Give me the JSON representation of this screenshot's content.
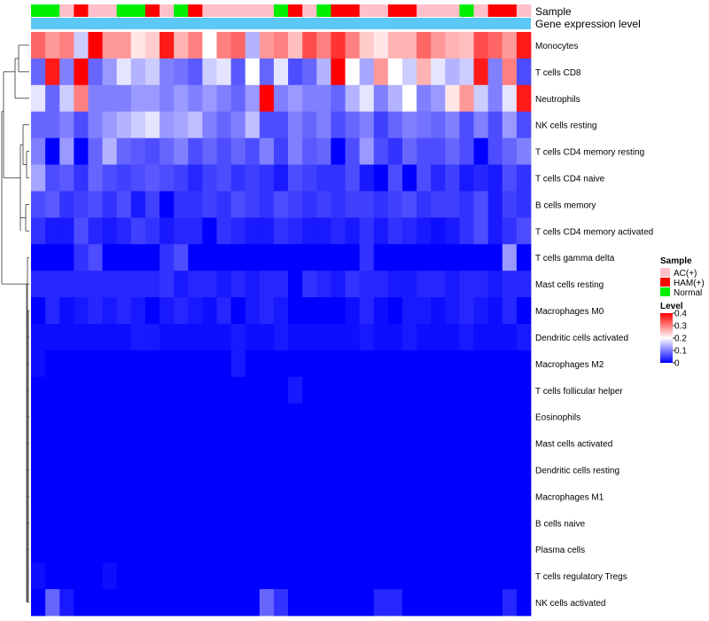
{
  "chart_data": {
    "type": "heatmap",
    "annotation_rows": [
      "Sample",
      "Gene expression level"
    ],
    "rows": [
      "Monocytes",
      "T cells CD8",
      "Neutrophils",
      "NK cells resting",
      "T cells CD4 memory resting",
      "T cells CD4 naive",
      "B cells memory",
      "T cells CD4 memory activated",
      "T cells gamma delta",
      "Mast cells resting",
      "Macrophages M0",
      "Dendritic cells activated",
      "Macrophages M2",
      "T cells follicular helper",
      "Eosinophils",
      "Mast cells activated",
      "Dendritic cells resting",
      "Macrophages M1",
      "B cells naive",
      "Plasma cells",
      "T cells regulatory  Tregs",
      "NK cells activated"
    ],
    "sample_groups": [
      "Normal",
      "Normal",
      "AC(+)",
      "HAM(+)",
      "AC(+)",
      "AC(+)",
      "Normal",
      "Normal",
      "HAM(+)",
      "AC(+)",
      "Normal",
      "HAM(+)",
      "AC(+)",
      "AC(+)",
      "AC(+)",
      "AC(+)",
      "AC(+)",
      "Normal",
      "HAM(+)",
      "AC(+)",
      "Normal",
      "HAM(+)",
      "HAM(+)",
      "AC(+)",
      "AC(+)",
      "HAM(+)",
      "HAM(+)",
      "AC(+)",
      "AC(+)",
      "AC(+)",
      "Normal",
      "AC(+)",
      "HAM(+)",
      "HAM(+)",
      "AC(+)"
    ],
    "values": [
      [
        0.32,
        0.28,
        0.3,
        0.16,
        0.4,
        0.28,
        0.28,
        0.22,
        0.24,
        0.38,
        0.26,
        0.3,
        0.2,
        0.3,
        0.32,
        0.14,
        0.28,
        0.3,
        0.25,
        0.34,
        0.3,
        0.36,
        0.3,
        0.24,
        0.22,
        0.26,
        0.26,
        0.32,
        0.28,
        0.26,
        0.25,
        0.34,
        0.32,
        0.28,
        0.38
      ],
      [
        0.08,
        0.38,
        0.1,
        0.4,
        0.08,
        0.12,
        0.18,
        0.14,
        0.16,
        0.1,
        0.09,
        0.07,
        0.16,
        0.18,
        0.07,
        0.2,
        0.08,
        0.18,
        0.06,
        0.08,
        0.14,
        0.4,
        0.2,
        0.13,
        0.28,
        0.2,
        0.16,
        0.26,
        0.18,
        0.14,
        0.16,
        0.38,
        0.1,
        0.3,
        0.06
      ],
      [
        0.18,
        0.08,
        0.16,
        0.3,
        0.1,
        0.1,
        0.1,
        0.12,
        0.12,
        0.1,
        0.12,
        0.1,
        0.12,
        0.1,
        0.08,
        0.12,
        0.4,
        0.1,
        0.12,
        0.1,
        0.1,
        0.08,
        0.14,
        0.18,
        0.1,
        0.14,
        0.2,
        0.1,
        0.12,
        0.22,
        0.28,
        0.16,
        0.1,
        0.18,
        0.38
      ],
      [
        0.08,
        0.08,
        0.1,
        0.06,
        0.1,
        0.12,
        0.14,
        0.16,
        0.18,
        0.12,
        0.13,
        0.15,
        0.1,
        0.08,
        0.1,
        0.15,
        0.06,
        0.06,
        0.1,
        0.08,
        0.1,
        0.06,
        0.08,
        0.1,
        0.05,
        0.08,
        0.1,
        0.09,
        0.08,
        0.1,
        0.06,
        0.1,
        0.06,
        0.12,
        0.06
      ],
      [
        0.1,
        0.0,
        0.12,
        0.0,
        0.08,
        0.14,
        0.08,
        0.07,
        0.06,
        0.08,
        0.1,
        0.06,
        0.08,
        0.06,
        0.08,
        0.06,
        0.1,
        0.05,
        0.1,
        0.07,
        0.08,
        0.0,
        0.06,
        0.12,
        0.06,
        0.04,
        0.08,
        0.06,
        0.06,
        0.08,
        0.06,
        0.0,
        0.06,
        0.08,
        0.1
      ],
      [
        0.13,
        0.06,
        0.07,
        0.04,
        0.08,
        0.06,
        0.05,
        0.06,
        0.07,
        0.06,
        0.05,
        0.03,
        0.05,
        0.06,
        0.04,
        0.05,
        0.04,
        0.02,
        0.06,
        0.05,
        0.04,
        0.04,
        0.06,
        0.02,
        0.0,
        0.06,
        0.0,
        0.06,
        0.03,
        0.05,
        0.02,
        0.03,
        0.02,
        0.06,
        0.04
      ],
      [
        0.06,
        0.07,
        0.04,
        0.05,
        0.06,
        0.04,
        0.06,
        0.02,
        0.05,
        0.0,
        0.04,
        0.04,
        0.05,
        0.04,
        0.06,
        0.05,
        0.04,
        0.06,
        0.05,
        0.04,
        0.05,
        0.04,
        0.05,
        0.05,
        0.04,
        0.05,
        0.06,
        0.04,
        0.05,
        0.05,
        0.04,
        0.06,
        0.02,
        0.05,
        0.04
      ],
      [
        0.04,
        0.02,
        0.02,
        0.06,
        0.03,
        0.02,
        0.03,
        0.05,
        0.04,
        0.02,
        0.03,
        0.03,
        0.0,
        0.04,
        0.03,
        0.02,
        0.02,
        0.04,
        0.03,
        0.02,
        0.02,
        0.03,
        0.02,
        0.04,
        0.02,
        0.04,
        0.03,
        0.02,
        0.01,
        0.02,
        0.04,
        0.06,
        0.02,
        0.04,
        0.06
      ],
      [
        0.0,
        0.0,
        0.0,
        0.04,
        0.06,
        0.0,
        0.0,
        0.0,
        0.0,
        0.04,
        0.06,
        0.0,
        0.0,
        0.0,
        0.0,
        0.0,
        0.0,
        0.0,
        0.0,
        0.0,
        0.0,
        0.0,
        0.0,
        0.04,
        0.0,
        0.0,
        0.0,
        0.0,
        0.0,
        0.0,
        0.0,
        0.0,
        0.0,
        0.12,
        0.0
      ],
      [
        0.03,
        0.03,
        0.03,
        0.03,
        0.03,
        0.03,
        0.03,
        0.03,
        0.03,
        0.04,
        0.02,
        0.03,
        0.03,
        0.02,
        0.03,
        0.02,
        0.03,
        0.03,
        0.0,
        0.04,
        0.03,
        0.02,
        0.04,
        0.03,
        0.03,
        0.02,
        0.02,
        0.03,
        0.03,
        0.02,
        0.03,
        0.03,
        0.02,
        0.03,
        0.03
      ],
      [
        0.0,
        0.03,
        0.01,
        0.02,
        0.03,
        0.02,
        0.03,
        0.02,
        0.0,
        0.02,
        0.03,
        0.02,
        0.01,
        0.03,
        0.0,
        0.02,
        0.03,
        0.02,
        0.0,
        0.0,
        0.0,
        0.0,
        0.01,
        0.03,
        0.01,
        0.0,
        0.02,
        0.02,
        0.01,
        0.02,
        0.03,
        0.02,
        0.01,
        0.03,
        0.0
      ],
      [
        0.01,
        0.01,
        0.01,
        0.01,
        0.01,
        0.01,
        0.01,
        0.02,
        0.02,
        0.01,
        0.01,
        0.01,
        0.01,
        0.01,
        0.02,
        0.01,
        0.01,
        0.02,
        0.01,
        0.01,
        0.01,
        0.01,
        0.01,
        0.02,
        0.01,
        0.01,
        0.02,
        0.01,
        0.01,
        0.01,
        0.02,
        0.01,
        0.01,
        0.01,
        0.02
      ],
      [
        0.01,
        0.0,
        0.0,
        0.0,
        0.0,
        0.0,
        0.0,
        0.0,
        0.0,
        0.0,
        0.0,
        0.0,
        0.0,
        0.0,
        0.02,
        0.0,
        0.0,
        0.0,
        0.0,
        0.0,
        0.0,
        0.0,
        0.0,
        0.0,
        0.0,
        0.0,
        0.0,
        0.0,
        0.0,
        0.0,
        0.0,
        0.0,
        0.0,
        0.0,
        0.0
      ],
      [
        0.0,
        0.0,
        0.0,
        0.0,
        0.0,
        0.0,
        0.0,
        0.0,
        0.0,
        0.0,
        0.0,
        0.0,
        0.0,
        0.0,
        0.0,
        0.0,
        0.0,
        0.0,
        0.02,
        0.0,
        0.0,
        0.0,
        0.0,
        0.0,
        0.0,
        0.0,
        0.0,
        0.0,
        0.0,
        0.0,
        0.0,
        0.0,
        0.0,
        0.0,
        0.0
      ],
      [
        0.0,
        0.0,
        0.0,
        0.0,
        0.0,
        0.0,
        0.0,
        0.0,
        0.0,
        0.0,
        0.0,
        0.0,
        0.0,
        0.0,
        0.0,
        0.0,
        0.0,
        0.0,
        0.0,
        0.0,
        0.0,
        0.0,
        0.0,
        0.0,
        0.0,
        0.0,
        0.0,
        0.0,
        0.0,
        0.0,
        0.0,
        0.0,
        0.0,
        0.0,
        0.0
      ],
      [
        0.0,
        0.0,
        0.0,
        0.0,
        0.0,
        0.0,
        0.0,
        0.0,
        0.0,
        0.0,
        0.0,
        0.0,
        0.0,
        0.0,
        0.0,
        0.0,
        0.0,
        0.0,
        0.0,
        0.0,
        0.0,
        0.0,
        0.0,
        0.0,
        0.0,
        0.0,
        0.0,
        0.0,
        0.0,
        0.0,
        0.0,
        0.0,
        0.0,
        0.0,
        0.0
      ],
      [
        0.0,
        0.0,
        0.0,
        0.0,
        0.0,
        0.0,
        0.0,
        0.0,
        0.0,
        0.0,
        0.0,
        0.0,
        0.0,
        0.0,
        0.0,
        0.0,
        0.0,
        0.0,
        0.0,
        0.0,
        0.0,
        0.0,
        0.0,
        0.0,
        0.0,
        0.0,
        0.0,
        0.0,
        0.0,
        0.0,
        0.0,
        0.0,
        0.0,
        0.0,
        0.0
      ],
      [
        0.0,
        0.0,
        0.0,
        0.0,
        0.0,
        0.0,
        0.0,
        0.0,
        0.0,
        0.0,
        0.0,
        0.0,
        0.0,
        0.0,
        0.0,
        0.0,
        0.0,
        0.0,
        0.0,
        0.0,
        0.0,
        0.0,
        0.0,
        0.0,
        0.0,
        0.0,
        0.0,
        0.0,
        0.0,
        0.0,
        0.0,
        0.0,
        0.0,
        0.0,
        0.0
      ],
      [
        0.0,
        0.0,
        0.0,
        0.0,
        0.0,
        0.0,
        0.0,
        0.0,
        0.0,
        0.0,
        0.0,
        0.0,
        0.0,
        0.0,
        0.0,
        0.0,
        0.0,
        0.0,
        0.0,
        0.0,
        0.0,
        0.0,
        0.0,
        0.0,
        0.0,
        0.0,
        0.0,
        0.0,
        0.0,
        0.0,
        0.0,
        0.0,
        0.0,
        0.0,
        0.0
      ],
      [
        0.0,
        0.0,
        0.0,
        0.0,
        0.0,
        0.0,
        0.0,
        0.0,
        0.0,
        0.0,
        0.0,
        0.0,
        0.0,
        0.0,
        0.0,
        0.0,
        0.0,
        0.0,
        0.0,
        0.0,
        0.0,
        0.0,
        0.0,
        0.0,
        0.0,
        0.0,
        0.0,
        0.0,
        0.0,
        0.0,
        0.0,
        0.0,
        0.0,
        0.0,
        0.0
      ],
      [
        0.01,
        0.0,
        0.0,
        0.0,
        0.0,
        0.01,
        0.0,
        0.0,
        0.0,
        0.0,
        0.0,
        0.0,
        0.0,
        0.0,
        0.0,
        0.0,
        0.0,
        0.0,
        0.0,
        0.0,
        0.0,
        0.0,
        0.0,
        0.0,
        0.0,
        0.0,
        0.0,
        0.0,
        0.0,
        0.0,
        0.0,
        0.0,
        0.0,
        0.0,
        0.0
      ],
      [
        0.0,
        0.08,
        0.02,
        0.0,
        0.0,
        0.0,
        0.0,
        0.0,
        0.0,
        0.0,
        0.0,
        0.0,
        0.0,
        0.0,
        0.0,
        0.0,
        0.08,
        0.04,
        0.0,
        0.0,
        0.0,
        0.0,
        0.0,
        0.0,
        0.03,
        0.03,
        0.0,
        0.0,
        0.0,
        0.0,
        0.0,
        0.0,
        0.0,
        0.03,
        0.0
      ]
    ],
    "annotation_legend": {
      "title": "Sample",
      "entries": [
        {
          "label": "AC(+)",
          "color": "#FFC0CB"
        },
        {
          "label": "HAM(+)",
          "color": "#FF0000"
        },
        {
          "label": "Normal",
          "color": "#00EE00"
        }
      ]
    },
    "color_legend": {
      "title": "Level",
      "min": 0,
      "max": 0.4,
      "ticks": [
        "0.4",
        "0.3",
        "0.2",
        "0.1",
        "0"
      ],
      "low_color": "#0000FF",
      "mid_color": "#FFFFFF",
      "high_color": "#FF0000"
    },
    "expression_bar_color": "#5BC8F5"
  }
}
